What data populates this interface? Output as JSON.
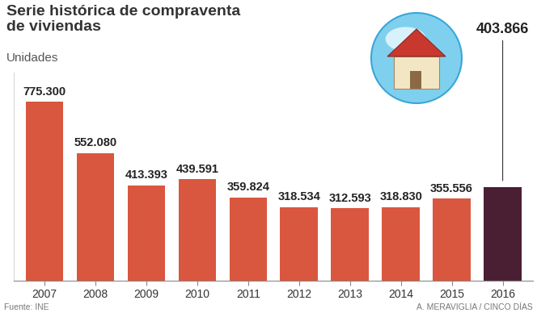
{
  "chart_data": {
    "type": "bar",
    "title": "Serie histórica de compraventa\nde viviendas",
    "subtitle": "Unidades",
    "annotations": [
      "Fuente: INE",
      "A. MERAVIGLIA / CINCO DÍAS"
    ],
    "categories": [
      "2007",
      "2008",
      "2009",
      "2010",
      "2011",
      "2012",
      "2013",
      "2014",
      "2015",
      "2016"
    ],
    "values": [
      775300,
      552080,
      413393,
      439591,
      359824,
      318534,
      312593,
      318830,
      355556,
      403866
    ],
    "value_labels": [
      "775.300",
      "552.080",
      "413.393",
      "439.591",
      "359.824",
      "318.534",
      "312.593",
      "318.830",
      "355.556",
      "403.866"
    ],
    "colors": [
      "#d9573f",
      "#d9573f",
      "#d9573f",
      "#d9573f",
      "#d9573f",
      "#d9573f",
      "#d9573f",
      "#d9573f",
      "#d9573f",
      "#4b1f33"
    ],
    "ylim": [
      0,
      900000
    ],
    "data_labels": true,
    "tick_labels": "x",
    "grid": false
  }
}
